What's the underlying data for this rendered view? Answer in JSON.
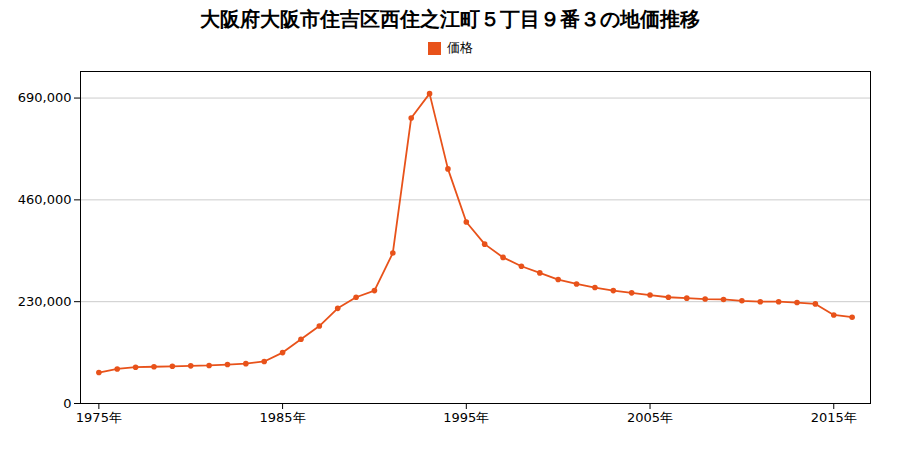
{
  "chart_data": {
    "type": "line",
    "title": "大阪府大阪市住吉区西住之江町５丁目９番３の地価推移",
    "x": [
      1975,
      1976,
      1977,
      1978,
      1979,
      1980,
      1981,
      1982,
      1983,
      1984,
      1985,
      1986,
      1987,
      1988,
      1989,
      1990,
      1991,
      1992,
      1993,
      1994,
      1995,
      1996,
      1997,
      1998,
      1999,
      2000,
      2001,
      2002,
      2003,
      2004,
      2005,
      2006,
      2007,
      2008,
      2009,
      2010,
      2011,
      2012,
      2013,
      2014,
      2015,
      2016
    ],
    "series": [
      {
        "name": "価格",
        "color": "#E8521A",
        "marker": "circle",
        "values": [
          70000,
          78000,
          82000,
          83000,
          84000,
          85000,
          86000,
          88000,
          90000,
          95000,
          115000,
          145000,
          175000,
          215000,
          240000,
          255000,
          340000,
          645000,
          700000,
          530000,
          410000,
          360000,
          330000,
          310000,
          295000,
          280000,
          270000,
          262000,
          255000,
          250000,
          245000,
          240000,
          238000,
          236000,
          235000,
          232000,
          230000,
          230000,
          228000,
          225000,
          200000,
          195000
        ]
      }
    ],
    "xlim": [
      1974,
      2017
    ],
    "xticks": [
      {
        "value": 1975,
        "label": "1975年"
      },
      {
        "value": 1985,
        "label": "1985年"
      },
      {
        "value": 1995,
        "label": "1995年"
      },
      {
        "value": 2005,
        "label": "2005年"
      },
      {
        "value": 2015,
        "label": "2015年"
      }
    ],
    "ylim": [
      0,
      750000
    ],
    "yticks": [
      0,
      {
        "value": 230000,
        "label": "230,000"
      },
      {
        "value": 460000,
        "label": "460,000"
      },
      {
        "value": 690000,
        "label": "690,000"
      }
    ],
    "grid": true,
    "legend": "top"
  }
}
